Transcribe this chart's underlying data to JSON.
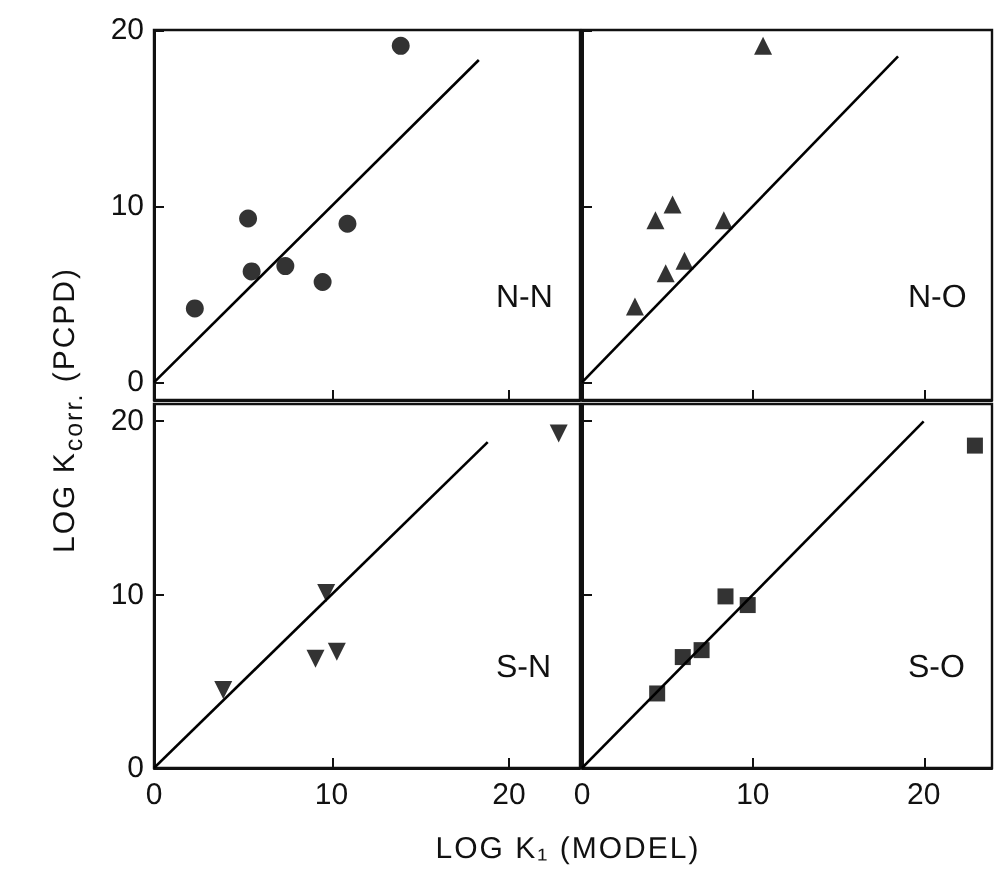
{
  "chart_data": [
    {
      "type": "scatter",
      "ylabel": "LOG K$_{corr.}$ (PCPD)",
      "annotations": [
        "N-N"
      ],
      "xlim": [
        0,
        24
      ],
      "ylim": [
        -1,
        20
      ],
      "xticks": [
        0,
        10,
        20
      ],
      "yticks": [
        0,
        10,
        20
      ],
      "tick_labels": "y",
      "marker": "circle",
      "series": [
        {
          "color": "#000000",
          "x": [
            2.3,
            5.3,
            5.5,
            7.4,
            9.5,
            10.9,
            13.9
          ],
          "values": [
            4.2,
            9.3,
            6.3,
            6.6,
            5.7,
            9.0,
            19.1
          ]
        },
        {
          "type": "line",
          "color": "#000000",
          "marker": "none",
          "x": [
            0,
            18.3
          ],
          "values": [
            0,
            18.3
          ]
        }
      ]
    },
    {
      "type": "scatter",
      "annotations": [
        "N-O"
      ],
      "xlim": [
        0,
        24
      ],
      "ylim": [
        -1,
        20
      ],
      "xticks": [
        0,
        10,
        20
      ],
      "yticks": [
        0,
        10,
        20
      ],
      "tick_labels": false,
      "marker": "triangle",
      "series": [
        {
          "color": "#000000",
          "x": [
            3.1,
            4.3,
            5.3,
            4.9,
            6.0,
            8.3,
            10.6
          ],
          "values": [
            4.3,
            9.2,
            10.1,
            6.2,
            6.9,
            9.2,
            19.1
          ]
        },
        {
          "type": "line",
          "color": "#000000",
          "marker": "none",
          "x": [
            0,
            18.5
          ],
          "values": [
            0,
            18.5
          ]
        }
      ]
    },
    {
      "type": "scatter",
      "xlabel": "LOG K₁ (MODEL)",
      "annotations": [
        "S-N"
      ],
      "xlim": [
        0,
        24
      ],
      "ylim": [
        0,
        21
      ],
      "xticks": [
        0,
        10,
        20
      ],
      "yticks": [
        0,
        10,
        20
      ],
      "marker": "triangle-down",
      "series": [
        {
          "color": "#000000",
          "x": [
            3.9,
            9.7,
            9.1,
            10.3,
            22.8
          ],
          "values": [
            4.5,
            10.1,
            6.3,
            6.7,
            19.3
          ]
        },
        {
          "type": "line",
          "color": "#000000",
          "marker": "none",
          "x": [
            0,
            18.8
          ],
          "values": [
            0,
            18.8
          ]
        }
      ]
    },
    {
      "type": "scatter",
      "annotations": [
        "S-O"
      ],
      "xlim": [
        0,
        24
      ],
      "ylim": [
        0,
        21
      ],
      "xticks": [
        0,
        10,
        20
      ],
      "yticks": [
        0,
        10,
        20
      ],
      "tick_labels": "x",
      "marker": "square",
      "series": [
        {
          "color": "#000000",
          "x": [
            4.4,
            5.9,
            7.0,
            8.4,
            9.7,
            23.0
          ],
          "values": [
            4.3,
            6.4,
            6.8,
            9.9,
            9.4,
            18.6
          ]
        },
        {
          "type": "line",
          "color": "#000000",
          "marker": "none",
          "x": [
            0,
            20
          ],
          "values": [
            0,
            20
          ]
        }
      ]
    }
  ]
}
